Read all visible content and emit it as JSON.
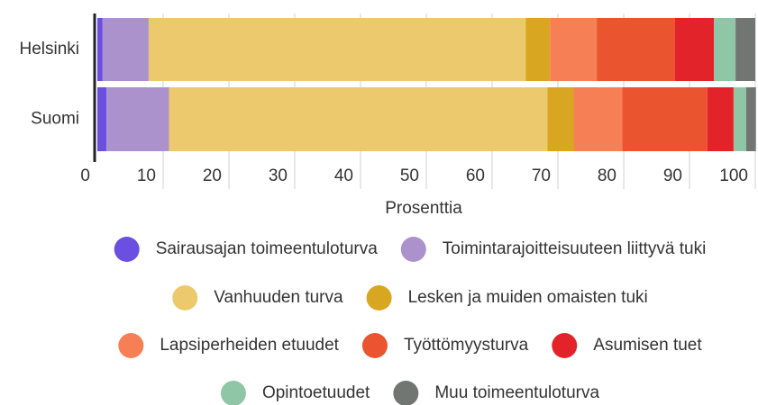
{
  "chart_data": {
    "type": "bar",
    "orientation": "horizontal",
    "stacked": true,
    "categories": [
      "Helsinki",
      "Suomi"
    ],
    "x_label": "Prosenttia",
    "xlim": [
      0,
      100
    ],
    "xticks": [
      0,
      10,
      20,
      30,
      40,
      50,
      60,
      70,
      80,
      90,
      100
    ],
    "grid": true,
    "series": [
      {
        "name": "Sairausajan toimeentuloturva",
        "color": "#6a4fe0",
        "values": [
          0.8,
          1.4
        ]
      },
      {
        "name": "Toimintarajoitteisuuteen liittyvä tuki",
        "color": "#ab92cc",
        "values": [
          7.0,
          9.5
        ]
      },
      {
        "name": "Vanhuuden turva",
        "color": "#edc96d",
        "values": [
          57.3,
          57.5
        ]
      },
      {
        "name": "Lesken ja muiden omaisten tuki",
        "color": "#d9a622",
        "values": [
          3.7,
          4.0
        ]
      },
      {
        "name": "Lapsiperheiden etuudet",
        "color": "#f77f55",
        "values": [
          7.1,
          7.4
        ]
      },
      {
        "name": "Työttömyysturva",
        "color": "#ea5530",
        "values": [
          11.9,
          12.9
        ]
      },
      {
        "name": "Asumisen tuet",
        "color": "#e3232a",
        "values": [
          5.9,
          4.0
        ]
      },
      {
        "name": "Opintoetuudet",
        "color": "#8fc7a6",
        "values": [
          3.3,
          1.9
        ]
      },
      {
        "name": "Muu toimeentuloturva",
        "color": "#717672",
        "values": [
          3.0,
          1.5
        ]
      }
    ]
  }
}
